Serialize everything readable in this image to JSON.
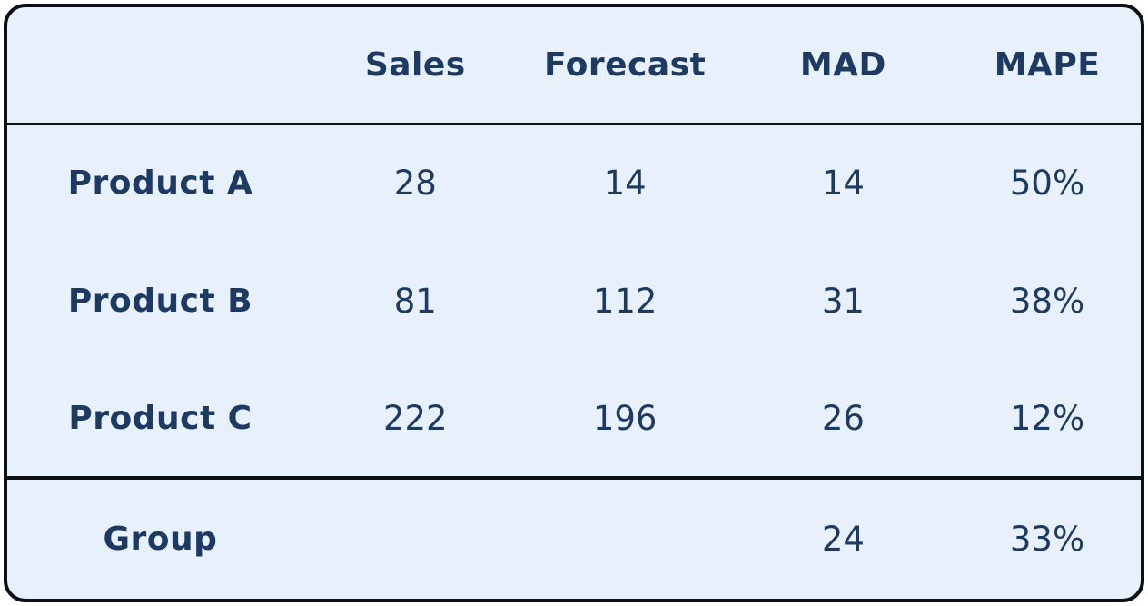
{
  "colors": {
    "card_background": "#e8f1fb",
    "text": "#1d3b62",
    "border": "#0d1014",
    "page_background": "#ffffff"
  },
  "chart_data": {
    "type": "table",
    "columns": [
      "Sales",
      "Forecast",
      "MAD",
      "MAPE"
    ],
    "corner_label": "",
    "rows": [
      {
        "label": "Product A",
        "cells": [
          "28",
          "14",
          "14",
          "50%"
        ]
      },
      {
        "label": "Product B",
        "cells": [
          "81",
          "112",
          "31",
          "38%"
        ]
      },
      {
        "label": "Product C",
        "cells": [
          "222",
          "196",
          "26",
          "12%"
        ]
      }
    ],
    "footer": {
      "label": "Group",
      "cells": [
        "",
        "",
        "24",
        "33%"
      ]
    }
  }
}
